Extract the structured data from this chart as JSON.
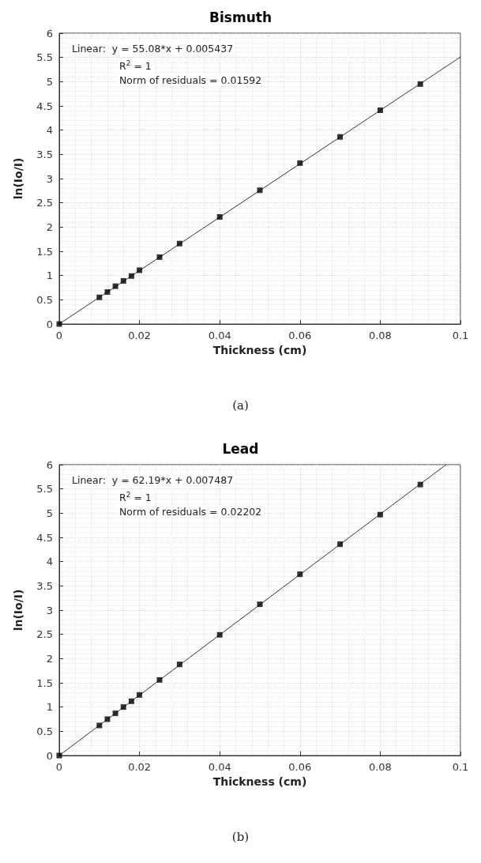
{
  "chart_data": [
    {
      "type": "scatter",
      "title": "Bismuth",
      "xlabel": "Thickness (cm)",
      "ylabel": "ln(Io/I)",
      "annotations": [
        "Linear:  y = 55.08*x + 0.005437",
        "R$^{2}$ = 1",
        "Norm of residuals = 0.01592",
        "(a)"
      ],
      "series": [
        {
          "color": "#000000",
          "x": [
            0,
            0.01,
            0.012,
            0.014,
            0.016,
            0.018,
            0.02,
            0.025,
            0.03,
            0.04,
            0.05,
            0.06,
            0.07,
            0.08,
            0.09
          ],
          "values": [
            0,
            0.55,
            0.66,
            0.78,
            0.89,
            0.99,
            1.11,
            1.38,
            1.66,
            2.21,
            2.76,
            3.32,
            3.86,
            4.41,
            4.95
          ]
        },
        {
          "type": "line",
          "color": "#000000",
          "marker": "none",
          "x": [
            0,
            0.1
          ],
          "values": [
            0,
            5.51
          ]
        }
      ],
      "xlim": [
        0,
        0.1
      ],
      "xticks": [
        0,
        0.02,
        0.04,
        0.06,
        0.08,
        0.1
      ],
      "ylim": [
        0,
        6
      ],
      "yticks": [
        0,
        0.5,
        1,
        1.5,
        2,
        2.5,
        3,
        3.5,
        4,
        4.5,
        5,
        5.5,
        6
      ],
      "grid": true,
      "marker": "square"
    },
    {
      "type": "scatter",
      "title": "Lead",
      "xlabel": "Thickness (cm)",
      "ylabel": "ln(Io/I)",
      "annotations": [
        "Linear:  y = 62.19*x + 0.007487",
        "R$^{2}$ = 1",
        "Norm of residuals = 0.02202",
        "(b)"
      ],
      "series": [
        {
          "color": "#000000",
          "x": [
            0,
            0.01,
            0.012,
            0.014,
            0.016,
            0.018,
            0.02,
            0.025,
            0.03,
            0.04,
            0.05,
            0.06,
            0.07,
            0.08,
            0.09
          ],
          "values": [
            0,
            0.62,
            0.75,
            0.87,
            1.0,
            1.12,
            1.25,
            1.56,
            1.88,
            2.49,
            3.12,
            3.74,
            4.36,
            4.97,
            5.59
          ]
        },
        {
          "type": "line",
          "color": "#000000",
          "marker": "none",
          "x": [
            0,
            0.0964
          ],
          "values": [
            0,
            6
          ]
        }
      ],
      "xlim": [
        0,
        0.1
      ],
      "xticks": [
        0,
        0.02,
        0.04,
        0.06,
        0.08,
        0.1
      ],
      "ylim": [
        0,
        6
      ],
      "yticks": [
        0,
        0.5,
        1,
        1.5,
        2,
        2.5,
        3,
        3.5,
        4,
        4.5,
        5,
        5.5,
        6
      ],
      "grid": true,
      "marker": "square"
    }
  ]
}
